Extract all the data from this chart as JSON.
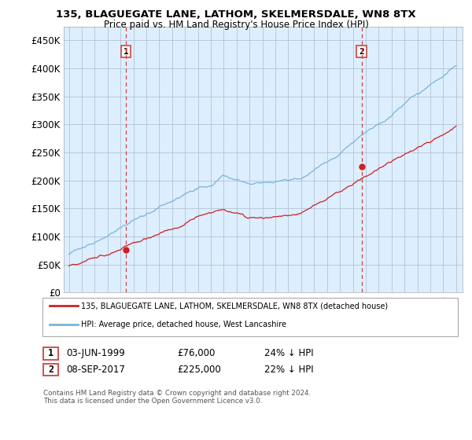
{
  "title1": "135, BLAGUEGATE LANE, LATHOM, SKELMERSDALE, WN8 8TX",
  "title2": "Price paid vs. HM Land Registry's House Price Index (HPI)",
  "ylim": [
    0,
    475000
  ],
  "yticks": [
    0,
    50000,
    100000,
    150000,
    200000,
    250000,
    300000,
    350000,
    400000,
    450000
  ],
  "ytick_labels": [
    "£0",
    "£50K",
    "£100K",
    "£150K",
    "£200K",
    "£250K",
    "£300K",
    "£350K",
    "£400K",
    "£450K"
  ],
  "sale1_date": 1999.42,
  "sale1_price": 76000,
  "sale1_label": "03-JUN-1999",
  "sale1_value_str": "£76,000",
  "sale1_pct": "24% ↓ HPI",
  "sale2_date": 2017.67,
  "sale2_price": 225000,
  "sale2_label": "08-SEP-2017",
  "sale2_value_str": "£225,000",
  "sale2_pct": "22% ↓ HPI",
  "legend_property": "135, BLAGUEGATE LANE, LATHOM, SKELMERSDALE, WN8 8TX (detached house)",
  "legend_hpi": "HPI: Average price, detached house, West Lancashire",
  "footnote": "Contains HM Land Registry data © Crown copyright and database right 2024.\nThis data is licensed under the Open Government Licence v3.0.",
  "hpi_color": "#7ab4d8",
  "property_color": "#cc2222",
  "vline_color": "#cc4444",
  "sale_dot_color": "#cc2222",
  "plot_bg_color": "#ddeeff",
  "background_color": "#ffffff",
  "grid_color": "#aabbcc"
}
